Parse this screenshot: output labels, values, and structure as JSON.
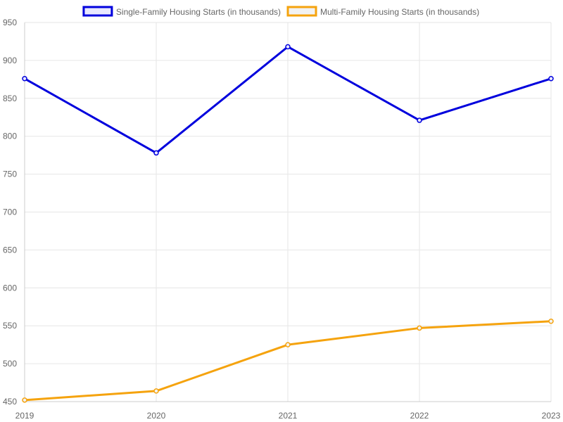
{
  "chart_data": {
    "type": "line",
    "title": "",
    "xlabel": "",
    "ylabel": "",
    "x": [
      "2019",
      "2020",
      "2021",
      "2022",
      "2023"
    ],
    "ylim": [
      450,
      950
    ],
    "yticks": [
      450,
      500,
      550,
      600,
      650,
      700,
      750,
      800,
      850,
      900,
      950
    ],
    "grid": true,
    "legend_position": "top-center",
    "series": [
      {
        "name": "Single-Family Housing Starts (in thousands)",
        "values": [
          876,
          778,
          918,
          821,
          876
        ],
        "color": "#0000dd",
        "fill": "#e8e8ff"
      },
      {
        "name": "Multi-Family Housing Starts (in thousands)",
        "values": [
          452,
          464,
          525,
          547,
          556
        ],
        "color": "#f5a30e",
        "fill": "#f2f2f2"
      }
    ]
  }
}
